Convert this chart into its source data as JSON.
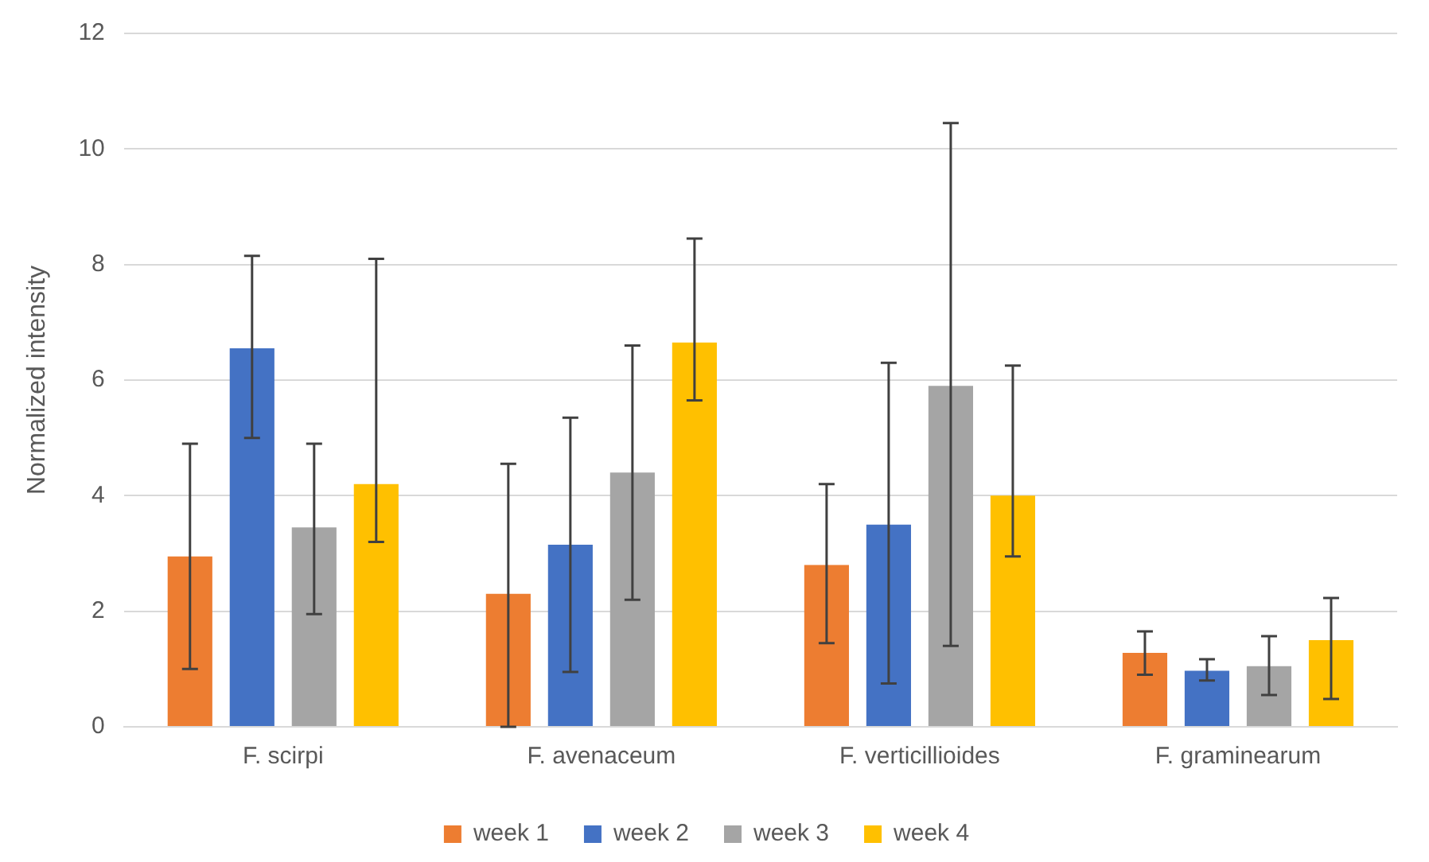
{
  "chart_data": {
    "type": "bar",
    "ylabel": "Normalized intensity",
    "categories": [
      "F. scirpi",
      "F. avenaceum",
      "F. verticillioides",
      "F. graminearum"
    ],
    "series": [
      {
        "name": "week 1",
        "color": "#ed7d31",
        "values": [
          2.95,
          2.3,
          2.8,
          1.28
        ],
        "errors": [
          [
            1.0,
            4.9
          ],
          [
            0,
            4.55
          ],
          [
            1.45,
            4.2
          ],
          [
            0.9,
            1.65
          ]
        ]
      },
      {
        "name": "week 2",
        "color": "#4472c4",
        "values": [
          6.55,
          3.15,
          3.5,
          0.97
        ],
        "errors": [
          [
            5.0,
            8.15
          ],
          [
            0.95,
            5.35
          ],
          [
            0.75,
            6.3
          ],
          [
            0.8,
            1.17
          ]
        ]
      },
      {
        "name": "week 3",
        "color": "#a5a5a5",
        "values": [
          3.45,
          4.4,
          5.9,
          1.05
        ],
        "errors": [
          [
            1.95,
            4.9
          ],
          [
            2.2,
            6.6
          ],
          [
            1.4,
            10.45
          ],
          [
            0.55,
            1.57
          ]
        ]
      },
      {
        "name": "week 4",
        "color": "#ffc000",
        "values": [
          4.2,
          6.65,
          4.0,
          1.5
        ],
        "errors": [
          [
            3.2,
            8.1
          ],
          [
            5.65,
            8.45
          ],
          [
            2.95,
            6.25
          ],
          [
            0.48,
            2.23
          ]
        ]
      }
    ],
    "ylim": [
      0,
      12
    ],
    "yticks": [
      0,
      2,
      4,
      6,
      8,
      10,
      12
    ],
    "grid": "y",
    "legend": "bottom"
  }
}
